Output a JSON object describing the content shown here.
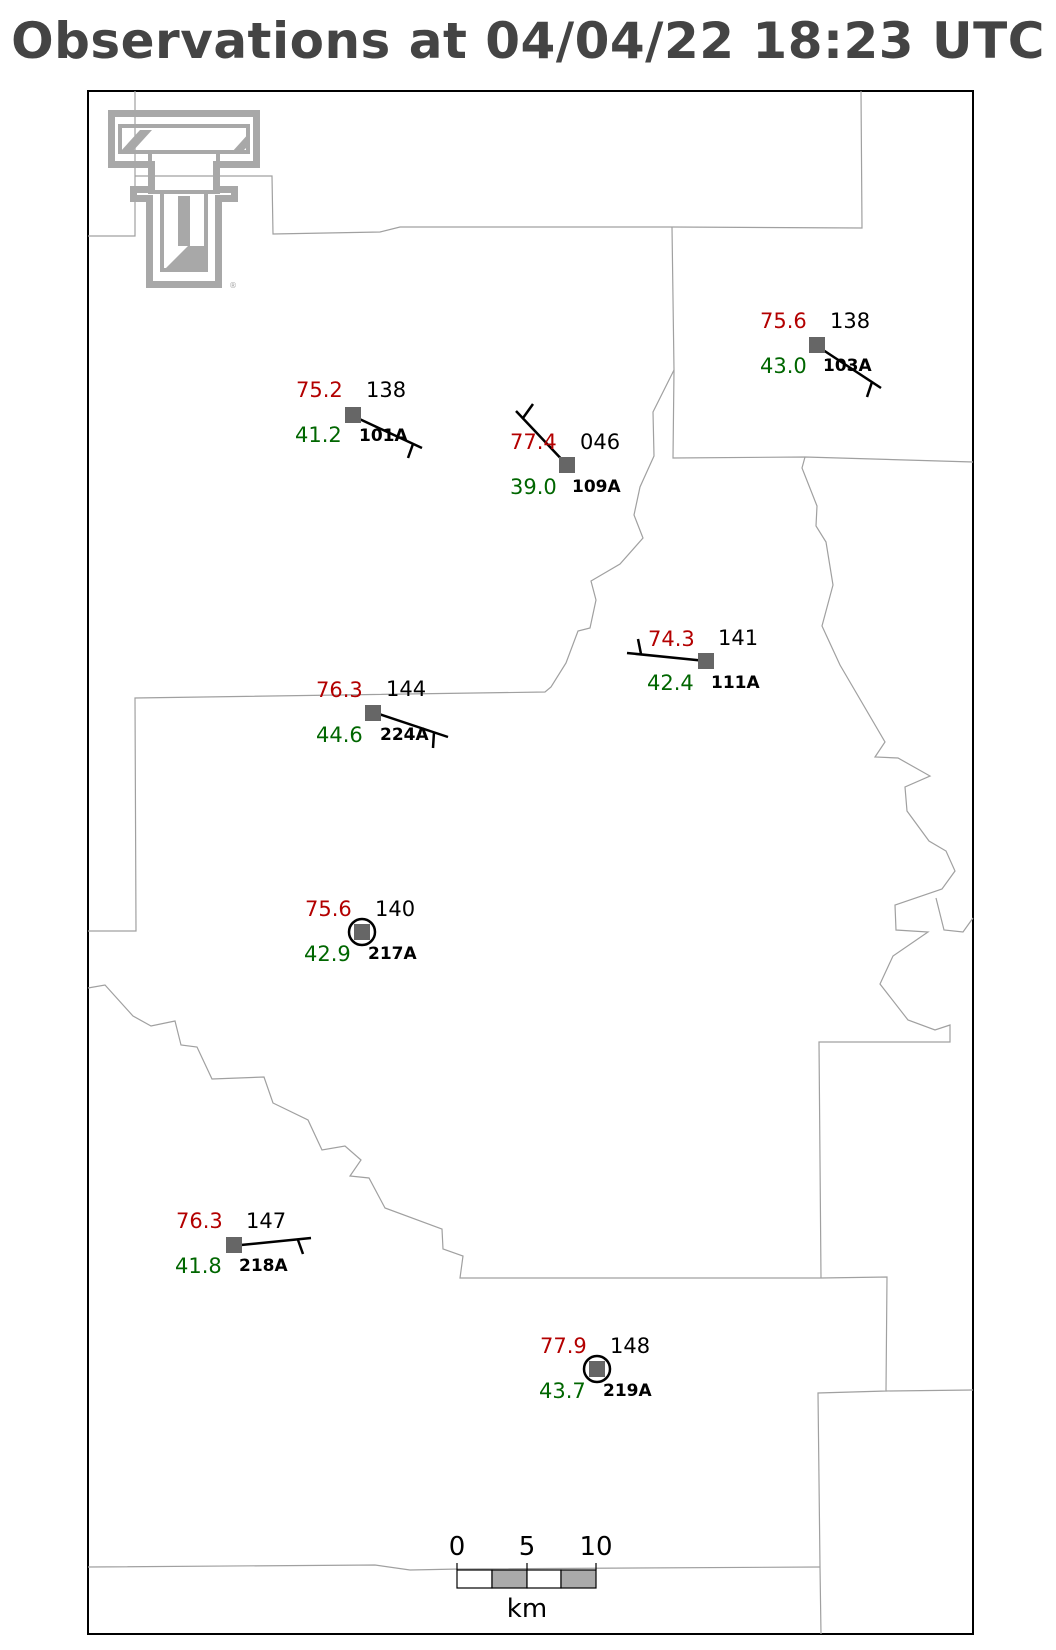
{
  "title": "Observations at 04/04/22 18:23 UTC",
  "colors": {
    "title": "#444444",
    "temperature": "#b30000",
    "dewpoint": "#006600",
    "station_marker": "#666666",
    "county_lines": "#a0a0a0",
    "logo": "#a8a8a8"
  },
  "logo": {
    "name": "Texas Tech Double T",
    "mark": "®"
  },
  "stations": [
    {
      "id": "101A",
      "temp": "75.2",
      "dewpoint": "41.2",
      "pressure": "138",
      "calm": false
    },
    {
      "id": "109A",
      "temp": "77.4",
      "dewpoint": "39.0",
      "pressure": "046",
      "calm": false
    },
    {
      "id": "103A",
      "temp": "75.6",
      "dewpoint": "43.0",
      "pressure": "138",
      "calm": false
    },
    {
      "id": "111A",
      "temp": "74.3",
      "dewpoint": "42.4",
      "pressure": "141",
      "calm": false
    },
    {
      "id": "224A",
      "temp": "76.3",
      "dewpoint": "44.6",
      "pressure": "144",
      "calm": false
    },
    {
      "id": "217A",
      "temp": "75.6",
      "dewpoint": "42.9",
      "pressure": "140",
      "calm": true
    },
    {
      "id": "218A",
      "temp": "76.3",
      "dewpoint": "41.8",
      "pressure": "147",
      "calm": false
    },
    {
      "id": "219A",
      "temp": "77.9",
      "dewpoint": "43.7",
      "pressure": "148",
      "calm": true
    }
  ],
  "scale_bar": {
    "ticks": [
      "0",
      "5",
      "10"
    ],
    "unit": "km"
  }
}
